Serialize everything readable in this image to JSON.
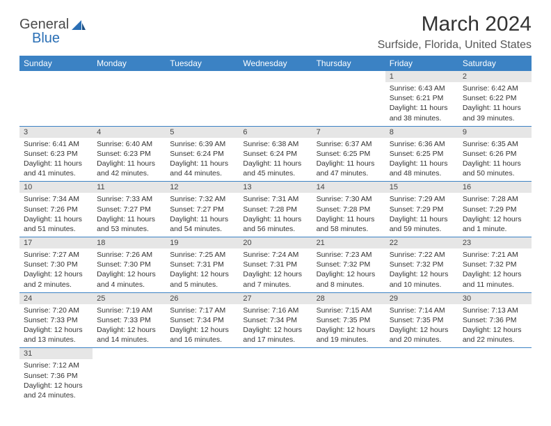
{
  "brand": {
    "part1": "General",
    "part2": "Blue"
  },
  "title": "March 2024",
  "location": "Surfside, Florida, United States",
  "colors": {
    "header_bg": "#3b82c4",
    "header_fg": "#ffffff",
    "daynum_bg": "#e6e6e6",
    "border": "#3b82c4",
    "text": "#333333",
    "brand_gray": "#4a4a4a",
    "brand_blue": "#2a6fb5"
  },
  "day_headers": [
    "Sunday",
    "Monday",
    "Tuesday",
    "Wednesday",
    "Thursday",
    "Friday",
    "Saturday"
  ],
  "weeks": [
    [
      null,
      null,
      null,
      null,
      null,
      {
        "n": "1",
        "sunrise": "Sunrise: 6:43 AM",
        "sunset": "Sunset: 6:21 PM",
        "daylight": "Daylight: 11 hours and 38 minutes."
      },
      {
        "n": "2",
        "sunrise": "Sunrise: 6:42 AM",
        "sunset": "Sunset: 6:22 PM",
        "daylight": "Daylight: 11 hours and 39 minutes."
      }
    ],
    [
      {
        "n": "3",
        "sunrise": "Sunrise: 6:41 AM",
        "sunset": "Sunset: 6:23 PM",
        "daylight": "Daylight: 11 hours and 41 minutes."
      },
      {
        "n": "4",
        "sunrise": "Sunrise: 6:40 AM",
        "sunset": "Sunset: 6:23 PM",
        "daylight": "Daylight: 11 hours and 42 minutes."
      },
      {
        "n": "5",
        "sunrise": "Sunrise: 6:39 AM",
        "sunset": "Sunset: 6:24 PM",
        "daylight": "Daylight: 11 hours and 44 minutes."
      },
      {
        "n": "6",
        "sunrise": "Sunrise: 6:38 AM",
        "sunset": "Sunset: 6:24 PM",
        "daylight": "Daylight: 11 hours and 45 minutes."
      },
      {
        "n": "7",
        "sunrise": "Sunrise: 6:37 AM",
        "sunset": "Sunset: 6:25 PM",
        "daylight": "Daylight: 11 hours and 47 minutes."
      },
      {
        "n": "8",
        "sunrise": "Sunrise: 6:36 AM",
        "sunset": "Sunset: 6:25 PM",
        "daylight": "Daylight: 11 hours and 48 minutes."
      },
      {
        "n": "9",
        "sunrise": "Sunrise: 6:35 AM",
        "sunset": "Sunset: 6:26 PM",
        "daylight": "Daylight: 11 hours and 50 minutes."
      }
    ],
    [
      {
        "n": "10",
        "sunrise": "Sunrise: 7:34 AM",
        "sunset": "Sunset: 7:26 PM",
        "daylight": "Daylight: 11 hours and 51 minutes."
      },
      {
        "n": "11",
        "sunrise": "Sunrise: 7:33 AM",
        "sunset": "Sunset: 7:27 PM",
        "daylight": "Daylight: 11 hours and 53 minutes."
      },
      {
        "n": "12",
        "sunrise": "Sunrise: 7:32 AM",
        "sunset": "Sunset: 7:27 PM",
        "daylight": "Daylight: 11 hours and 54 minutes."
      },
      {
        "n": "13",
        "sunrise": "Sunrise: 7:31 AM",
        "sunset": "Sunset: 7:28 PM",
        "daylight": "Daylight: 11 hours and 56 minutes."
      },
      {
        "n": "14",
        "sunrise": "Sunrise: 7:30 AM",
        "sunset": "Sunset: 7:28 PM",
        "daylight": "Daylight: 11 hours and 58 minutes."
      },
      {
        "n": "15",
        "sunrise": "Sunrise: 7:29 AM",
        "sunset": "Sunset: 7:29 PM",
        "daylight": "Daylight: 11 hours and 59 minutes."
      },
      {
        "n": "16",
        "sunrise": "Sunrise: 7:28 AM",
        "sunset": "Sunset: 7:29 PM",
        "daylight": "Daylight: 12 hours and 1 minute."
      }
    ],
    [
      {
        "n": "17",
        "sunrise": "Sunrise: 7:27 AM",
        "sunset": "Sunset: 7:30 PM",
        "daylight": "Daylight: 12 hours and 2 minutes."
      },
      {
        "n": "18",
        "sunrise": "Sunrise: 7:26 AM",
        "sunset": "Sunset: 7:30 PM",
        "daylight": "Daylight: 12 hours and 4 minutes."
      },
      {
        "n": "19",
        "sunrise": "Sunrise: 7:25 AM",
        "sunset": "Sunset: 7:31 PM",
        "daylight": "Daylight: 12 hours and 5 minutes."
      },
      {
        "n": "20",
        "sunrise": "Sunrise: 7:24 AM",
        "sunset": "Sunset: 7:31 PM",
        "daylight": "Daylight: 12 hours and 7 minutes."
      },
      {
        "n": "21",
        "sunrise": "Sunrise: 7:23 AM",
        "sunset": "Sunset: 7:32 PM",
        "daylight": "Daylight: 12 hours and 8 minutes."
      },
      {
        "n": "22",
        "sunrise": "Sunrise: 7:22 AM",
        "sunset": "Sunset: 7:32 PM",
        "daylight": "Daylight: 12 hours and 10 minutes."
      },
      {
        "n": "23",
        "sunrise": "Sunrise: 7:21 AM",
        "sunset": "Sunset: 7:32 PM",
        "daylight": "Daylight: 12 hours and 11 minutes."
      }
    ],
    [
      {
        "n": "24",
        "sunrise": "Sunrise: 7:20 AM",
        "sunset": "Sunset: 7:33 PM",
        "daylight": "Daylight: 12 hours and 13 minutes."
      },
      {
        "n": "25",
        "sunrise": "Sunrise: 7:19 AM",
        "sunset": "Sunset: 7:33 PM",
        "daylight": "Daylight: 12 hours and 14 minutes."
      },
      {
        "n": "26",
        "sunrise": "Sunrise: 7:17 AM",
        "sunset": "Sunset: 7:34 PM",
        "daylight": "Daylight: 12 hours and 16 minutes."
      },
      {
        "n": "27",
        "sunrise": "Sunrise: 7:16 AM",
        "sunset": "Sunset: 7:34 PM",
        "daylight": "Daylight: 12 hours and 17 minutes."
      },
      {
        "n": "28",
        "sunrise": "Sunrise: 7:15 AM",
        "sunset": "Sunset: 7:35 PM",
        "daylight": "Daylight: 12 hours and 19 minutes."
      },
      {
        "n": "29",
        "sunrise": "Sunrise: 7:14 AM",
        "sunset": "Sunset: 7:35 PM",
        "daylight": "Daylight: 12 hours and 20 minutes."
      },
      {
        "n": "30",
        "sunrise": "Sunrise: 7:13 AM",
        "sunset": "Sunset: 7:36 PM",
        "daylight": "Daylight: 12 hours and 22 minutes."
      }
    ],
    [
      {
        "n": "31",
        "sunrise": "Sunrise: 7:12 AM",
        "sunset": "Sunset: 7:36 PM",
        "daylight": "Daylight: 12 hours and 24 minutes."
      },
      null,
      null,
      null,
      null,
      null,
      null
    ]
  ]
}
